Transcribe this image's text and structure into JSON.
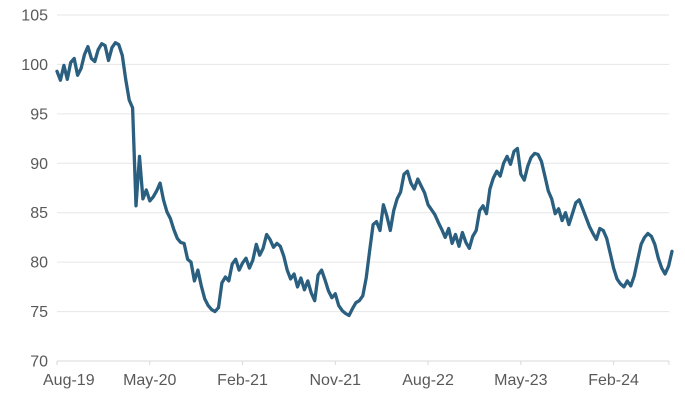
{
  "chart_data": {
    "type": "line",
    "title": "",
    "legend": "none",
    "grid": "horizontal",
    "ylim": [
      70,
      105
    ],
    "y_ticks": [
      70,
      75,
      80,
      85,
      90,
      95,
      100,
      105
    ],
    "x_tick_labels": [
      "Aug-19",
      "May-20",
      "Feb-21",
      "Nov-21",
      "Aug-22",
      "May-23",
      "Feb-24"
    ],
    "x_tick_indices": [
      0,
      27,
      54,
      81,
      108,
      135,
      162
    ],
    "x_range_months": "Aug-19 to Jul-24",
    "points_per_month": 3,
    "line_color": "#2A5F7F",
    "grid_color": "#E6E6E6",
    "axis_line_color": "#D9D9D9",
    "label_color": "#595959",
    "values": [
      99.3,
      98.4,
      99.9,
      98.5,
      100.2,
      100.6,
      98.9,
      99.6,
      101.0,
      101.8,
      100.6,
      100.3,
      101.5,
      102.1,
      101.9,
      100.4,
      101.7,
      102.2,
      102.0,
      100.9,
      98.5,
      96.4,
      95.6,
      85.7,
      90.7,
      86.4,
      87.3,
      86.2,
      86.6,
      87.2,
      88.0,
      86.3,
      85.1,
      84.4,
      83.3,
      82.4,
      82.0,
      81.9,
      80.3,
      80.0,
      78.1,
      79.2,
      77.6,
      76.3,
      75.6,
      75.2,
      75.0,
      75.4,
      77.9,
      78.5,
      78.1,
      79.8,
      80.3,
      79.2,
      79.9,
      80.4,
      79.4,
      80.2,
      81.8,
      80.7,
      81.4,
      82.8,
      82.3,
      81.5,
      81.9,
      81.6,
      80.6,
      79.2,
      78.3,
      78.8,
      77.5,
      78.4,
      77.2,
      78.1,
      76.9,
      76.1,
      78.7,
      79.2,
      78.2,
      77.1,
      76.4,
      76.8,
      75.6,
      75.1,
      74.8,
      74.6,
      75.3,
      75.9,
      76.1,
      76.6,
      78.4,
      81.2,
      83.8,
      84.1,
      83.2,
      85.8,
      84.7,
      83.2,
      85.2,
      86.4,
      87.1,
      88.9,
      89.2,
      88.0,
      87.4,
      88.4,
      87.7,
      87.0,
      85.8,
      85.3,
      84.8,
      84.0,
      83.3,
      82.5,
      83.4,
      81.9,
      82.8,
      81.6,
      83.0,
      82.0,
      81.4,
      82.6,
      83.2,
      85.2,
      85.7,
      84.9,
      87.4,
      88.5,
      89.2,
      88.7,
      90.0,
      90.7,
      89.9,
      91.2,
      91.5,
      88.9,
      88.3,
      89.7,
      90.6,
      91.0,
      90.9,
      90.2,
      88.7,
      87.2,
      86.4,
      84.9,
      85.4,
      84.2,
      85.0,
      83.8,
      84.9,
      86.0,
      86.3,
      85.4,
      84.5,
      83.6,
      82.9,
      82.3,
      83.4,
      83.2,
      82.4,
      80.9,
      79.4,
      78.3,
      77.8,
      77.5,
      78.1,
      77.6,
      78.6,
      80.2,
      81.8,
      82.5,
      82.9,
      82.6,
      81.8,
      80.4,
      79.4,
      78.8,
      79.6,
      81.1
    ]
  }
}
